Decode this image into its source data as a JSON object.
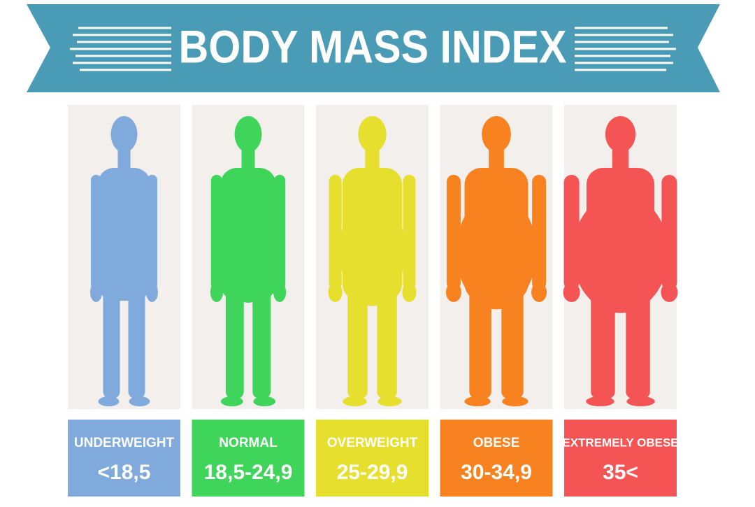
{
  "title": "BODY MASS INDEX",
  "categories": [
    {
      "label": "UNDERWEIGHT",
      "range": "<18,5",
      "color": "#80aadb"
    },
    {
      "label": "NORMAL",
      "range": "18,5-24,9",
      "color": "#3fd45a"
    },
    {
      "label": "OVERWEIGHT",
      "range": "25-29,9",
      "color": "#e6df2e"
    },
    {
      "label": "OBESE",
      "range": "30-34,9",
      "color": "#f7821f"
    },
    {
      "label": "EXTREMELY OBESE",
      "range": "35<",
      "color": "#f55454"
    }
  ]
}
